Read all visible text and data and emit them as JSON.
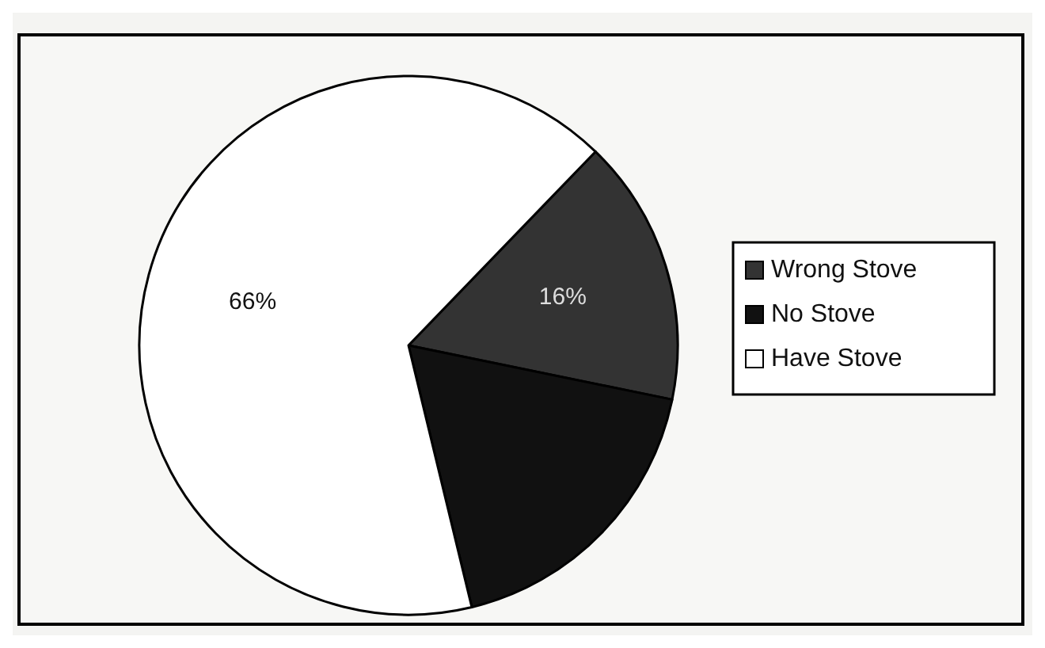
{
  "chart_data": {
    "type": "pie",
    "categories": [
      "Wrong Stove",
      "No Stove",
      "Have Stove"
    ],
    "values": [
      16,
      18,
      66
    ],
    "colors": [
      "#333333",
      "#111111",
      "#ffffff"
    ],
    "value_labels": [
      "16%",
      null,
      "66%"
    ],
    "legend": "right"
  }
}
